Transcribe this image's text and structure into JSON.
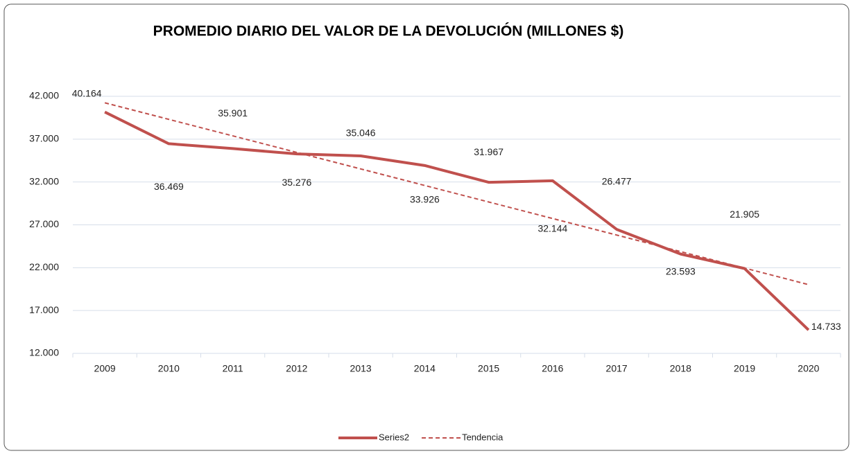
{
  "chart_data": {
    "type": "line",
    "title": "PROMEDIO DIARIO DEL VALOR DE LA DEVOLUCIÓN (MILLONES  $)",
    "categories": [
      "2009",
      "2010",
      "2011",
      "2012",
      "2013",
      "2014",
      "2015",
      "2016",
      "2017",
      "2018",
      "2019",
      "2020"
    ],
    "series": [
      {
        "name": "Series2",
        "color": "#c0504d",
        "values": [
          40164,
          36469,
          35901,
          35276,
          35046,
          33926,
          31967,
          32144,
          26477,
          23593,
          21905,
          14733
        ],
        "value_labels": [
          "40.164",
          "36.469",
          "35.901",
          "35.276",
          "35.046",
          "33.926",
          "31.967",
          "32.144",
          "26.477",
          "23.593",
          "21.905",
          "14.733"
        ]
      },
      {
        "name": "Tendencia",
        "color": "#c0504d",
        "dashed": true,
        "values": [
          41242,
          39313,
          37384,
          35455,
          33527,
          31598,
          29669,
          27740,
          25811,
          23882,
          21954,
          20025
        ]
      }
    ],
    "ylim": [
      12000,
      42000
    ],
    "yticks": [
      {
        "value": 12000,
        "label": "12.000"
      },
      {
        "value": 17000,
        "label": "17.000"
      },
      {
        "value": 22000,
        "label": "22.000"
      },
      {
        "value": 27000,
        "label": "27.000"
      },
      {
        "value": 32000,
        "label": "32.000"
      },
      {
        "value": 37000,
        "label": "37.000"
      },
      {
        "value": 42000,
        "label": "42.000"
      }
    ],
    "grid": true,
    "legend": "bottom"
  }
}
